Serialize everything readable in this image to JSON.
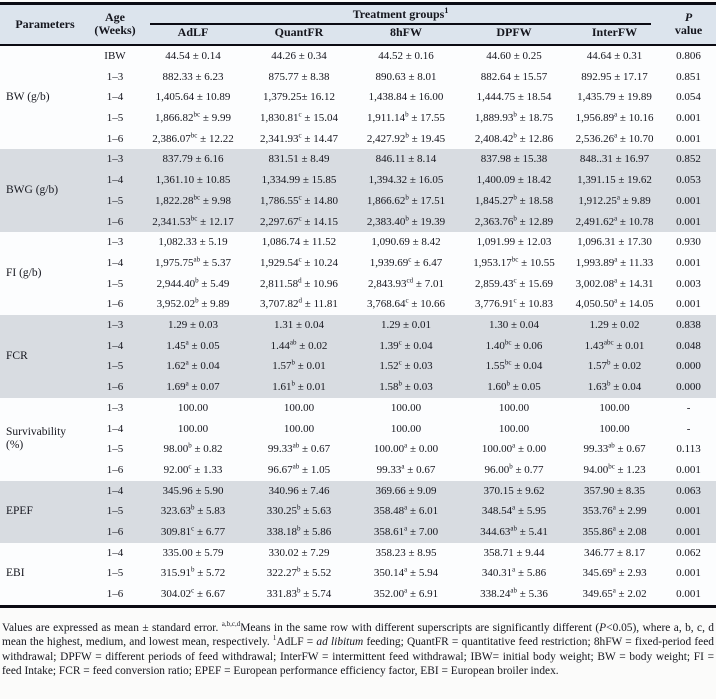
{
  "table": {
    "header": {
      "parameters": "Parameters",
      "age_line1": "Age",
      "age_line2": "(Weeks)",
      "treatment_groups": "Treatment groups",
      "treatment_groups_sup": "1",
      "group_cols": [
        "AdLF",
        "QuantFR",
        "8hFW",
        "DPFW",
        "InterFW"
      ],
      "p_line1": "P",
      "p_line2": "value"
    },
    "sections": [
      {
        "parameter": "BW (g/b)",
        "shaded": false,
        "rows": [
          {
            "age": "IBW",
            "values": [
              "44.54 ± 0.14",
              "44.26 ± 0.34",
              "44.52 ± 0.16",
              "44.60 ± 0.25",
              "44.64 ± 0.31"
            ],
            "p": "0.806"
          },
          {
            "age": "1–3",
            "values": [
              "882.33 ± 6.23",
              "875.77 ± 8.38",
              "890.63 ± 8.01",
              "882.64 ± 15.57",
              "892.95 ± 17.17"
            ],
            "p": "0.851"
          },
          {
            "age": "1–4",
            "values": [
              "1,405.64 ± 10.89",
              "1,379.25± 16.12",
              "1,438.84 ± 16.00",
              "1,444.75 ± 18.54",
              "1,435.79 ± 19.89"
            ],
            "p": "0.054"
          },
          {
            "age": "1–5",
            "values": [
              "1,866.82^bc^ ± 9.99",
              "1,830.81^c^ ± 15.04",
              "1,911.14^b^ ± 17.55",
              "1,889.93^b^ ± 18.75",
              "1,956.89^a^ ± 10.16"
            ],
            "p": "0.001"
          },
          {
            "age": "1–6",
            "values": [
              "2,386.07^bc^ ± 12.22",
              "2,341.93^c^ ± 14.47",
              "2,427.92^b^ ± 19.45",
              "2,408.42^b^ ± 12.86",
              "2,536.26^a^ ± 10.70"
            ],
            "p": "0.001"
          }
        ]
      },
      {
        "parameter": "BWG (g/b)",
        "shaded": true,
        "rows": [
          {
            "age": "1–3",
            "values": [
              "837.79 ± 6.16",
              "831.51 ± 8.49",
              "846.11 ± 8.14",
              "837.98 ± 15.38",
              "848..31 ± 16.97"
            ],
            "p": "0.852"
          },
          {
            "age": "1–4",
            "values": [
              "1,361.10 ± 10.85",
              "1,334.99 ± 15.85",
              "1,394.32 ± 16.05",
              "1,400.09 ± 18.42",
              "1,391.15 ± 19.62"
            ],
            "p": "0.053"
          },
          {
            "age": "1–5",
            "values": [
              "1,822.28^bc^ ± 9.98",
              "1,786.55^c^ ± 14.80",
              "1,866.62^b^ ± 17.51",
              "1,845.27^b^ ± 18.58",
              "1,912.25^a^ ± 9.89"
            ],
            "p": "0.001"
          },
          {
            "age": "1–6",
            "values": [
              "2,341.53^bc^ ± 12.17",
              "2,297.67^c^ ± 14.15",
              "2,383.40^b^ ± 19.39",
              "2,363.76^b^ ± 12.89",
              "2,491.62^a^ ± 10.78"
            ],
            "p": "0.001"
          }
        ]
      },
      {
        "parameter": "FI (g/b)",
        "shaded": false,
        "rows": [
          {
            "age": "1–3",
            "values": [
              "1,082.33 ± 5.19",
              "1,086.74 ± 11.52",
              "1,090.69 ± 8.42",
              "1,091.99 ± 12.03",
              "1,096.31 ± 17.30"
            ],
            "p": "0.930"
          },
          {
            "age": "1–4",
            "values": [
              "1,975.75^ab^ ± 5.37",
              "1,929.54^c^ ± 10.24",
              "1,939.69^c^ ± 6.47",
              "1,953.17^bc^ ± 10.55",
              "1,993.89^a^ ± 11.33"
            ],
            "p": "0.001"
          },
          {
            "age": "1–5",
            "values": [
              "2,944.40^b^ ± 5.49",
              "2,811.58^d^ ± 10.96",
              "2,843.93^cd^ ± 7.01",
              "2,859.43^c^ ± 15.69",
              "3,002.08^a^ ± 14.31"
            ],
            "p": "0.003"
          },
          {
            "age": "1–6",
            "values": [
              "3,952.02^b^ ± 9.89",
              "3,707.82^d^ ± 11.81",
              "3,768.64^c^ ± 10.66",
              "3,776.91^c^ ± 10.83",
              "4,050.50^a^ ± 14.05"
            ],
            "p": "0.001"
          }
        ]
      },
      {
        "parameter": "FCR",
        "shaded": true,
        "rows": [
          {
            "age": "1–3",
            "values": [
              "1.29 ± 0.03",
              "1.31 ± 0.04",
              "1.29 ± 0.01",
              "1.30 ± 0.04",
              "1.29 ± 0.02"
            ],
            "p": "0.838"
          },
          {
            "age": "1–4",
            "values": [
              "1.45^a^ ± 0.05",
              "1.44^ab^ ± 0.02",
              "1.39^c^ ± 0.04",
              "1.40^bc^ ± 0.06",
              "1.43^abc^ ± 0.01"
            ],
            "p": "0.048"
          },
          {
            "age": "1–5",
            "values": [
              "1.62^a^ ± 0.04",
              "1.57^b^ ± 0.01",
              "1.52^c^ ± 0.03",
              "1.55^bc^ ± 0.04",
              "1.57^b^ ± 0.02"
            ],
            "p": "0.000"
          },
          {
            "age": "1–6",
            "values": [
              "1.69^a^ ± 0.07",
              "1.61^b^ ± 0.01",
              "1.58^b^ ± 0.03",
              "1.60^b^ ± 0.05",
              "1.63^b^ ± 0.04"
            ],
            "p": "0.000"
          }
        ]
      },
      {
        "parameter": "Survivability (%)",
        "shaded": false,
        "rows": [
          {
            "age": "1–3",
            "values": [
              "100.00",
              "100.00",
              "100.00",
              "100.00",
              "100.00"
            ],
            "p": "-"
          },
          {
            "age": "1–4",
            "values": [
              "100.00",
              "100.00",
              "100.00",
              "100.00",
              "100.00"
            ],
            "p": "-"
          },
          {
            "age": "1–5",
            "values": [
              "98.00^b^ ± 0.82",
              "99.33^ab^ ± 0.67",
              "100.00^a^ ± 0.00",
              "100.00^a^ ± 0.00",
              "99.33^ab^ ± 0.67"
            ],
            "p": "0.113"
          },
          {
            "age": "1–6",
            "values": [
              "92.00^c^ ± 1.33",
              "96.67^ab^ ± 1.05",
              "99.33^a^ ± 0.67",
              "96.00^b^ ± 0.77",
              "94.00^bc^ ± 1.23"
            ],
            "p": "0.001"
          }
        ]
      },
      {
        "parameter": "EPEF",
        "shaded": true,
        "rows": [
          {
            "age": "1–4",
            "values": [
              "345.96 ± 5.90",
              "340.96 ± 7.46",
              "369.66 ± 9.09",
              "370.15 ± 9.62",
              "357.90 ± 8.35"
            ],
            "p": "0.063"
          },
          {
            "age": "1–5",
            "values": [
              "323.63^b^ ± 5.83",
              "330.25^b^ ± 5.63",
              "358.48^a^ ± 6.01",
              "348.54^a^ ± 5.95",
              "353.76^a^ ± 2.99"
            ],
            "p": "0.001"
          },
          {
            "age": "1–6",
            "values": [
              "309.81^c^ ± 6.77",
              "338.18^b^ ± 5.86",
              "358.61^a^ ± 7.00",
              "344.63^ab^ ± 5.41",
              "355.86^a^ ± 2.08"
            ],
            "p": "0.001"
          }
        ]
      },
      {
        "parameter": "EBI",
        "shaded": false,
        "rows": [
          {
            "age": "1–4",
            "values": [
              "335.00 ± 5.79",
              "330.02 ± 7.29",
              "358.23 ± 8.95",
              "358.71 ± 9.44",
              "346.77 ± 8.17"
            ],
            "p": "0.062"
          },
          {
            "age": "1–5",
            "values": [
              "315.91^b^ ± 5.72",
              "322.27^b^ ± 5.52",
              "350.14^a^ ± 5.94",
              "340.31^a^ ± 5.86",
              "345.69^a^ ± 2.93"
            ],
            "p": "0.001"
          },
          {
            "age": "1–6",
            "values": [
              "304.02^c^ ± 6.67",
              "331.83^b^ ± 5.74",
              "352.00^a^ ± 6.91",
              "338.24^ab^ ± 5.36",
              "349.65^a^ ± 2.02"
            ],
            "p": "0.001"
          }
        ]
      }
    ]
  },
  "footnote": {
    "segments": [
      {
        "text": "Values are expressed as mean ± standard error. "
      },
      {
        "text": "a,b,c,d",
        "sup": true
      },
      {
        "text": "Means in the same row with different superscripts are significantly different ("
      },
      {
        "text": "P",
        "italic": true
      },
      {
        "text": "<0.05), where a, b, c, d mean the highest, medium, and lowest mean, respectively. "
      },
      {
        "text": "1",
        "sup": true
      },
      {
        "text": "AdLF = "
      },
      {
        "text": "ad libitum",
        "italic": true
      },
      {
        "text": " feeding; QuantFR = quantitative feed restriction; 8hFW = fixed-period feed withdrawal; DPFW = different periods of feed withdrawal; InterFW = intermittent feed withdrawal; IBW= initial body weight; BW = body weight; FI = feed Intake; FCR = feed conversion ratio; EPEF = European performance efficiency factor, EBI = European broiler index."
      }
    ]
  },
  "colors": {
    "header_bg": "#dce4ed",
    "shaded_row_bg": "#d8dce1",
    "white_row_bg": "#fcfdfe",
    "rule": "#0b0b13",
    "text": "#15161e"
  }
}
